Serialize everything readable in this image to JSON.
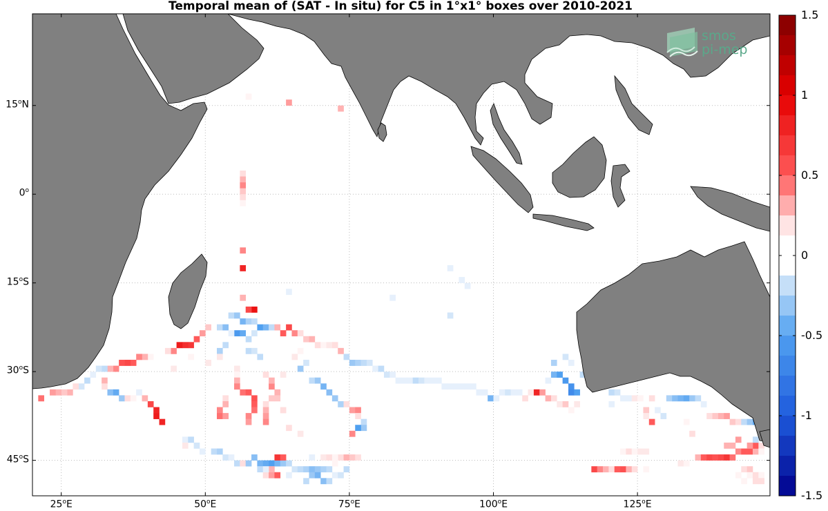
{
  "title": "Temporal mean of (SAT - In situ) for C5 in 1°x1° boxes over 2010-2021",
  "map": {
    "lon_range": [
      20,
      148
    ],
    "lat_range": [
      -51,
      30.5
    ],
    "lat_ticks": [
      {
        "lat": 15,
        "label": "15",
        "hemi": "N"
      },
      {
        "lat": 0,
        "label": "0",
        "hemi": ""
      },
      {
        "lat": -15,
        "label": "15",
        "hemi": "S"
      },
      {
        "lat": -30,
        "label": "30",
        "hemi": "S"
      },
      {
        "lat": -45,
        "label": "45",
        "hemi": "S"
      }
    ],
    "lon_ticks": [
      {
        "lon": 25,
        "label": "25",
        "hemi": "E"
      },
      {
        "lon": 50,
        "label": "50",
        "hemi": "E"
      },
      {
        "lon": 75,
        "label": "75",
        "hemi": "E"
      },
      {
        "lon": 100,
        "label": "100",
        "hemi": "E"
      },
      {
        "lon": 125,
        "label": "125",
        "hemi": "E"
      }
    ],
    "grid": true,
    "land_color": "#808080"
  },
  "colorbar": {
    "range": [
      -1.5,
      1.5
    ],
    "ticks": [
      "1.5",
      "1",
      "0.5",
      "0",
      "-0.5",
      "-1",
      "-1.5"
    ],
    "tick_values": [
      1.5,
      1,
      0.5,
      0,
      -0.5,
      -1,
      -1.5
    ]
  },
  "logo": {
    "line1": "smos",
    "line2": "pi-mep"
  },
  "boxes": [
    [
      57,
      16,
      0.15
    ],
    [
      64,
      15,
      0.35
    ],
    [
      73,
      14,
      0.3
    ],
    [
      56,
      3,
      0.2
    ],
    [
      56,
      2,
      0.3
    ],
    [
      56,
      1,
      0.4
    ],
    [
      56,
      0,
      0.25
    ],
    [
      56,
      -1,
      0.2
    ],
    [
      56,
      -2,
      0.15
    ],
    [
      56,
      -10,
      0.4
    ],
    [
      56,
      -13,
      0.8
    ],
    [
      56,
      -18,
      0.3
    ],
    [
      58,
      -20,
      0.9
    ],
    [
      57,
      -20,
      0.6
    ],
    [
      95,
      15,
      0.15
    ],
    [
      92,
      -13,
      -0.1
    ],
    [
      94,
      -15,
      -0.12
    ],
    [
      95,
      -16,
      -0.1
    ],
    [
      64,
      -17,
      -0.1
    ],
    [
      82,
      -18,
      -0.1
    ],
    [
      92,
      -21,
      -0.15
    ],
    [
      54,
      -21,
      -0.2
    ],
    [
      55,
      -21,
      -0.3
    ],
    [
      56,
      -22,
      -0.4
    ],
    [
      57,
      -22,
      -0.25
    ],
    [
      58,
      -22,
      -0.2
    ],
    [
      59,
      -23,
      -0.5
    ],
    [
      60,
      -23,
      -0.4
    ],
    [
      61,
      -23,
      -0.2
    ],
    [
      52,
      -23,
      -0.2
    ],
    [
      53,
      -23,
      -0.35
    ],
    [
      55,
      -24,
      -0.55
    ],
    [
      56,
      -24,
      -0.45
    ],
    [
      57,
      -25,
      -0.2
    ],
    [
      58,
      -24,
      -0.15
    ],
    [
      50,
      -23,
      0.25
    ],
    [
      49,
      -24,
      0.35
    ],
    [
      48,
      -25,
      0.5
    ],
    [
      47,
      -26,
      0.7
    ],
    [
      46,
      -26,
      0.75
    ],
    [
      45,
      -26,
      0.85
    ],
    [
      44,
      -27,
      0.4
    ],
    [
      43,
      -27,
      0.2
    ],
    [
      40,
      -28,
      0.15
    ],
    [
      39,
      -28,
      0.3
    ],
    [
      38,
      -28,
      0.4
    ],
    [
      37,
      -29,
      0.5
    ],
    [
      36,
      -29,
      0.6
    ],
    [
      35,
      -29,
      0.55
    ],
    [
      34,
      -30,
      0.4
    ],
    [
      33,
      -30,
      0.3
    ],
    [
      32,
      -30,
      -0.2
    ],
    [
      31,
      -30,
      -0.15
    ],
    [
      30,
      -31,
      -0.1
    ],
    [
      29,
      -32,
      -0.2
    ],
    [
      28,
      -33,
      -0.15
    ],
    [
      27,
      -33,
      0.2
    ],
    [
      26,
      -34,
      0.3
    ],
    [
      25,
      -34,
      0.25
    ],
    [
      24,
      -34,
      0.3
    ],
    [
      23,
      -34,
      0.35
    ],
    [
      21,
      -35,
      0.45
    ],
    [
      32,
      -32,
      0.3
    ],
    [
      32,
      -33,
      0.2
    ],
    [
      33,
      -34,
      -0.35
    ],
    [
      34,
      -34,
      -0.45
    ],
    [
      35,
      -35,
      -0.3
    ],
    [
      36,
      -35,
      0.2
    ],
    [
      37,
      -35,
      0.15
    ],
    [
      38,
      -34,
      -0.1
    ],
    [
      39,
      -35,
      0.3
    ],
    [
      40,
      -36,
      0.6
    ],
    [
      41,
      -37,
      0.8
    ],
    [
      41,
      -38,
      0.85
    ],
    [
      42,
      -39,
      0.8
    ],
    [
      62,
      -23,
      0.3
    ],
    [
      63,
      -24,
      0.5
    ],
    [
      64,
      -23,
      0.6
    ],
    [
      65,
      -24,
      0.4
    ],
    [
      66,
      -24,
      0.2
    ],
    [
      67,
      -25,
      0.25
    ],
    [
      68,
      -25,
      0.3
    ],
    [
      69,
      -26,
      0.2
    ],
    [
      70,
      -26,
      0.15
    ],
    [
      71,
      -26,
      0.1
    ],
    [
      72,
      -26,
      0.2
    ],
    [
      73,
      -27,
      0.3
    ],
    [
      74,
      -28,
      -0.2
    ],
    [
      75,
      -29,
      -0.3
    ],
    [
      76,
      -29,
      -0.25
    ],
    [
      77,
      -29,
      -0.2
    ],
    [
      78,
      -29,
      -0.15
    ],
    [
      79,
      -30,
      -0.1
    ],
    [
      80,
      -30,
      -0.2
    ],
    [
      81,
      -31,
      -0.15
    ],
    [
      82,
      -31,
      -0.1
    ],
    [
      83,
      -32,
      -0.1
    ],
    [
      84,
      -32,
      -0.05
    ],
    [
      85,
      -32,
      -0.1
    ],
    [
      86,
      -32,
      -0.2
    ],
    [
      87,
      -32,
      -0.15
    ],
    [
      88,
      -32,
      -0.1
    ],
    [
      89,
      -32,
      -0.1
    ],
    [
      90,
      -32,
      -0.05
    ],
    [
      91,
      -33,
      -0.1
    ],
    [
      92,
      -33,
      -0.1
    ],
    [
      93,
      -33,
      -0.05
    ],
    [
      94,
      -33,
      -0.1
    ],
    [
      95,
      -33,
      -0.05
    ],
    [
      96,
      -33,
      -0.1
    ],
    [
      97,
      -34,
      -0.1
    ],
    [
      98,
      -34,
      -0.05
    ],
    [
      99,
      -35,
      -0.4
    ],
    [
      100,
      -35,
      -0.1
    ],
    [
      101,
      -34,
      -0.12
    ],
    [
      102,
      -34,
      -0.15
    ],
    [
      103,
      -34,
      -0.08
    ],
    [
      104,
      -34,
      -0.1
    ],
    [
      105,
      -35,
      0.2
    ],
    [
      106,
      -34,
      0.1
    ],
    [
      107,
      -34,
      0.8
    ],
    [
      108,
      -34,
      0.35
    ],
    [
      109,
      -35,
      0.3
    ],
    [
      110,
      -35,
      0.2
    ],
    [
      111,
      -36,
      0.1
    ],
    [
      112,
      -36,
      0.25
    ],
    [
      113,
      -37,
      0.15
    ],
    [
      114,
      -36,
      0.1
    ],
    [
      110,
      -29,
      -0.25
    ],
    [
      110,
      -31,
      -0.4
    ],
    [
      111,
      -31,
      -0.5
    ],
    [
      112,
      -32,
      -0.55
    ],
    [
      113,
      -33,
      -0.6
    ],
    [
      113,
      -34,
      -0.65
    ],
    [
      114,
      -34,
      -0.5
    ],
    [
      112,
      -28,
      -0.15
    ],
    [
      113,
      -29,
      -0.1
    ],
    [
      109,
      -32,
      -0.1
    ],
    [
      115,
      -31,
      -0.2
    ],
    [
      116,
      -32,
      0.2
    ],
    [
      120,
      -34,
      -0.2
    ],
    [
      121,
      -34,
      -0.15
    ],
    [
      122,
      -35,
      -0.1
    ],
    [
      123,
      -35,
      -0.1
    ],
    [
      124,
      -35,
      0.1
    ],
    [
      125,
      -35,
      0.15
    ],
    [
      127,
      -35,
      0.2
    ],
    [
      130,
      -35,
      -0.25
    ],
    [
      131,
      -35,
      -0.35
    ],
    [
      132,
      -35,
      -0.4
    ],
    [
      133,
      -35,
      -0.45
    ],
    [
      134,
      -35,
      -0.3
    ],
    [
      135,
      -35,
      -0.2
    ],
    [
      136,
      -36,
      -0.1
    ],
    [
      137,
      -38,
      0.2
    ],
    [
      138,
      -38,
      0.25
    ],
    [
      139,
      -38,
      0.3
    ],
    [
      140,
      -38,
      0.35
    ],
    [
      141,
      -39,
      0.25
    ],
    [
      142,
      -39,
      0.2
    ],
    [
      143,
      -39,
      -0.2
    ],
    [
      144,
      -39,
      -0.3
    ],
    [
      145,
      -39,
      -0.45
    ],
    [
      146,
      -39,
      -0.6
    ],
    [
      147,
      -39,
      -0.5
    ],
    [
      122,
      -44,
      0.15
    ],
    [
      123,
      -44,
      0.2
    ],
    [
      124,
      -44,
      0.15
    ],
    [
      125,
      -44,
      0.1
    ],
    [
      126,
      -44,
      0.1
    ],
    [
      117,
      -47,
      0.6
    ],
    [
      118,
      -47,
      0.4
    ],
    [
      119,
      -47,
      0.3
    ],
    [
      120,
      -47,
      0.2
    ],
    [
      121,
      -47,
      0.5
    ],
    [
      122,
      -47,
      0.55
    ],
    [
      123,
      -47,
      0.3
    ],
    [
      124,
      -47,
      0.2
    ],
    [
      126,
      -47,
      0.15
    ],
    [
      132,
      -46,
      0.1
    ],
    [
      133,
      -46,
      0.15
    ],
    [
      135,
      -45,
      0.3
    ],
    [
      136,
      -45,
      0.5
    ],
    [
      137,
      -45,
      0.6
    ],
    [
      138,
      -45,
      0.55
    ],
    [
      139,
      -45,
      0.6
    ],
    [
      140,
      -45,
      0.7
    ],
    [
      141,
      -45,
      0.45
    ],
    [
      142,
      -44,
      0.4
    ],
    [
      143,
      -44,
      0.5
    ],
    [
      144,
      -44,
      0.5
    ],
    [
      145,
      -44,
      0.3
    ],
    [
      145,
      -43,
      0.5
    ],
    [
      144,
      -43,
      0.35
    ],
    [
      140,
      -43,
      0.3
    ],
    [
      141,
      -43,
      0.3
    ],
    [
      142,
      -42,
      0.35
    ],
    [
      146,
      -43,
      0.2
    ],
    [
      145,
      -42,
      -0.2
    ],
    [
      146,
      -44,
      0.15
    ],
    [
      143,
      -47,
      0.2
    ],
    [
      144,
      -47,
      0.25
    ],
    [
      144,
      -48,
      0.15
    ],
    [
      145,
      -48,
      0.2
    ],
    [
      145,
      -49,
      0.2
    ],
    [
      146,
      -48,
      0.15
    ],
    [
      146,
      -49,
      0.2
    ],
    [
      142,
      -48,
      0.15
    ],
    [
      143,
      -49,
      0.15
    ],
    [
      120,
      -36,
      -0.1
    ],
    [
      128,
      -37,
      -0.12
    ],
    [
      129,
      -38,
      -0.15
    ],
    [
      126,
      -37,
      0.25
    ],
    [
      127,
      -39,
      0.5
    ],
    [
      133,
      -39,
      0.15
    ],
    [
      134,
      -41,
      0.2
    ],
    [
      136,
      -36,
      -0.1
    ],
    [
      126,
      -38,
      0.1
    ],
    [
      51,
      -44,
      -0.2
    ],
    [
      52,
      -44,
      -0.25
    ],
    [
      53,
      -45,
      -0.15
    ],
    [
      54,
      -45,
      -0.1
    ],
    [
      55,
      -46,
      -0.2
    ],
    [
      56,
      -46,
      0.2
    ],
    [
      57,
      -46,
      -0.3
    ],
    [
      58,
      -45,
      -0.35
    ],
    [
      59,
      -46,
      -0.4
    ],
    [
      60,
      -46,
      -0.45
    ],
    [
      61,
      -46,
      -0.5
    ],
    [
      62,
      -46,
      -0.4
    ],
    [
      63,
      -46,
      -0.3
    ],
    [
      64,
      -46,
      -0.2
    ],
    [
      65,
      -47,
      -0.15
    ],
    [
      66,
      -47,
      -0.2
    ],
    [
      67,
      -47,
      -0.25
    ],
    [
      68,
      -47,
      -0.35
    ],
    [
      69,
      -47,
      -0.3
    ],
    [
      70,
      -47,
      -0.25
    ],
    [
      71,
      -47,
      -0.2
    ],
    [
      72,
      -46,
      0.15
    ],
    [
      73,
      -45,
      0.2
    ],
    [
      74,
      -45,
      0.3
    ],
    [
      75,
      -45,
      0.25
    ],
    [
      76,
      -45,
      0.2
    ],
    [
      68,
      -45,
      -0.1
    ],
    [
      70,
      -45,
      0.1
    ],
    [
      71,
      -45,
      0.2
    ],
    [
      72,
      -45,
      0.15
    ],
    [
      46,
      -42,
      -0.1
    ],
    [
      47,
      -42,
      -0.2
    ],
    [
      48,
      -43,
      -0.15
    ],
    [
      49,
      -44,
      -0.1
    ],
    [
      46,
      -43,
      0.1
    ],
    [
      62,
      -45,
      0.7
    ],
    [
      63,
      -45,
      0.5
    ],
    [
      59,
      -47,
      -0.2
    ],
    [
      60,
      -48,
      0.2
    ],
    [
      61,
      -48,
      0.35
    ],
    [
      62,
      -48,
      0.5
    ],
    [
      61,
      -47,
      0.3
    ],
    [
      60,
      -47,
      -0.1
    ],
    [
      64,
      -48,
      -0.1
    ],
    [
      67,
      -49,
      -0.2
    ],
    [
      68,
      -48,
      -0.3
    ],
    [
      69,
      -48,
      -0.4
    ],
    [
      70,
      -49,
      -0.35
    ],
    [
      71,
      -49,
      -0.2
    ],
    [
      72,
      -48,
      -0.1
    ],
    [
      73,
      -48,
      -0.15
    ],
    [
      74,
      -47,
      -0.2
    ],
    [
      55,
      -30,
      0.1
    ],
    [
      55,
      -31,
      0.15
    ],
    [
      55,
      -32,
      0.3
    ],
    [
      55,
      -33,
      0.4
    ],
    [
      56,
      -34,
      0.45
    ],
    [
      57,
      -34,
      0.5
    ],
    [
      58,
      -35,
      0.55
    ],
    [
      58,
      -36,
      0.5
    ],
    [
      58,
      -37,
      0.45
    ],
    [
      57,
      -38,
      0.4
    ],
    [
      57,
      -39,
      0.35
    ],
    [
      53,
      -35,
      0.2
    ],
    [
      53,
      -36,
      0.3
    ],
    [
      52,
      -37,
      0.4
    ],
    [
      52,
      -38,
      0.45
    ],
    [
      53,
      -38,
      0.35
    ],
    [
      60,
      -36,
      0.2
    ],
    [
      60,
      -37,
      0.3
    ],
    [
      60,
      -38,
      0.35
    ],
    [
      60,
      -39,
      0.4
    ],
    [
      61,
      -35,
      0.25
    ],
    [
      61,
      -33,
      0.4
    ],
    [
      61,
      -32,
      0.3
    ],
    [
      60,
      -31,
      0.2
    ],
    [
      63,
      -31,
      0.1
    ],
    [
      62,
      -34,
      0.3
    ],
    [
      62,
      -35,
      0.25
    ],
    [
      63,
      -37,
      0.2
    ],
    [
      64,
      -40,
      0.2
    ],
    [
      66,
      -41,
      0.1
    ],
    [
      68,
      -32,
      -0.2
    ],
    [
      69,
      -32,
      -0.3
    ],
    [
      70,
      -33,
      -0.4
    ],
    [
      71,
      -34,
      -0.35
    ],
    [
      72,
      -35,
      -0.3
    ],
    [
      73,
      -36,
      -0.25
    ],
    [
      74,
      -36,
      0.2
    ],
    [
      75,
      -37,
      0.35
    ],
    [
      76,
      -37,
      0.4
    ],
    [
      76,
      -38,
      0.2
    ],
    [
      77,
      -39,
      -0.2
    ],
    [
      77,
      -40,
      -0.3
    ],
    [
      76,
      -40,
      -0.5
    ],
    [
      75,
      -41,
      0.4
    ],
    [
      67,
      -29,
      -0.15
    ],
    [
      66,
      -30,
      -0.3
    ],
    [
      57,
      -27,
      -0.2
    ],
    [
      58,
      -27,
      -0.15
    ],
    [
      59,
      -28,
      -0.2
    ],
    [
      54,
      -24,
      -0.1
    ],
    [
      53,
      -26,
      -0.2
    ],
    [
      52,
      -27,
      -0.25
    ],
    [
      52,
      -28,
      0.1
    ],
    [
      50,
      -29,
      0.1
    ],
    [
      47,
      -28,
      0.15
    ],
    [
      44,
      -30,
      0.1
    ],
    [
      65,
      -28,
      0.1
    ],
    [
      66,
      -27,
      0.15
    ]
  ]
}
